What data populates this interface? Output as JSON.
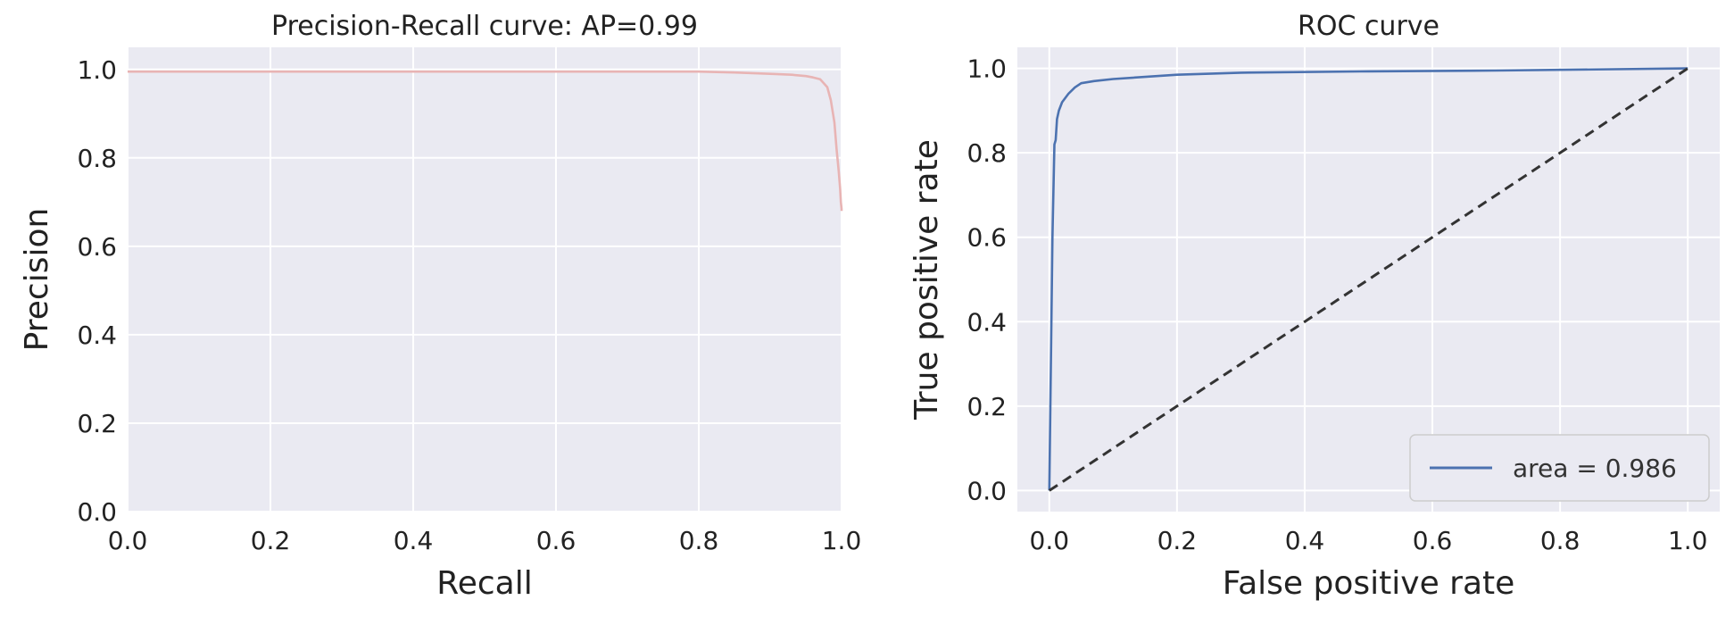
{
  "colors": {
    "panel_bg": "#eaeaf2",
    "grid": "#ffffff",
    "pr_line": "#e8b4b4",
    "roc_line": "#4c72b0",
    "diagonal": "#333333",
    "text": "#222222"
  },
  "chart_data": [
    {
      "type": "line",
      "title": "Precision-Recall curve: AP=0.99",
      "xlabel": "Recall",
      "ylabel": "Precision",
      "xlim": [
        0.0,
        1.0
      ],
      "ylim": [
        0.0,
        1.05
      ],
      "xticks": [
        0.0,
        0.2,
        0.4,
        0.6,
        0.8,
        1.0
      ],
      "xtick_labels": [
        "0.0",
        "0.2",
        "0.4",
        "0.6",
        "0.8",
        "1.0"
      ],
      "yticks": [
        0.0,
        0.2,
        0.4,
        0.6,
        0.8,
        1.0
      ],
      "ytick_labels": [
        "0.0",
        "0.2",
        "0.4",
        "0.6",
        "0.8",
        "1.0"
      ],
      "grid": true,
      "series": [
        {
          "x": [
            0.0,
            0.8,
            0.85,
            0.9,
            0.93,
            0.95,
            0.96,
            0.97,
            0.98,
            0.985,
            0.99,
            0.993,
            0.996,
            0.998,
            0.999,
            1.0,
            1.0
          ],
          "y": [
            0.995,
            0.995,
            0.993,
            0.99,
            0.988,
            0.985,
            0.982,
            0.978,
            0.96,
            0.93,
            0.88,
            0.82,
            0.77,
            0.73,
            0.7,
            0.685,
            0.68
          ],
          "color": "#e8b4b4"
        }
      ]
    },
    {
      "type": "line",
      "title": "ROC curve",
      "xlabel": "False positive rate",
      "ylabel": "True positive rate",
      "xlim": [
        -0.05,
        1.05
      ],
      "ylim": [
        -0.05,
        1.05
      ],
      "xticks": [
        0.0,
        0.2,
        0.4,
        0.6,
        0.8,
        1.0
      ],
      "xtick_labels": [
        "0.0",
        "0.2",
        "0.4",
        "0.6",
        "0.8",
        "1.0"
      ],
      "yticks": [
        0.0,
        0.2,
        0.4,
        0.6,
        0.8,
        1.0
      ],
      "ytick_labels": [
        "0.0",
        "0.2",
        "0.4",
        "0.6",
        "0.8",
        "1.0"
      ],
      "grid": true,
      "legend_position": "lower-right",
      "series": [
        {
          "name": "area = 0.986",
          "x": [
            0.0,
            0.005,
            0.008,
            0.01,
            0.012,
            0.015,
            0.02,
            0.03,
            0.04,
            0.05,
            0.07,
            0.1,
            0.2,
            0.3,
            0.5,
            0.7,
            1.0
          ],
          "y": [
            0.0,
            0.6,
            0.82,
            0.83,
            0.88,
            0.9,
            0.92,
            0.94,
            0.955,
            0.965,
            0.97,
            0.975,
            0.985,
            0.99,
            0.993,
            0.995,
            1.0
          ],
          "color": "#4c72b0"
        },
        {
          "x": [
            0.0,
            1.0
          ],
          "y": [
            0.0,
            1.0
          ],
          "color": "#333333",
          "dashed": true
        }
      ]
    }
  ]
}
